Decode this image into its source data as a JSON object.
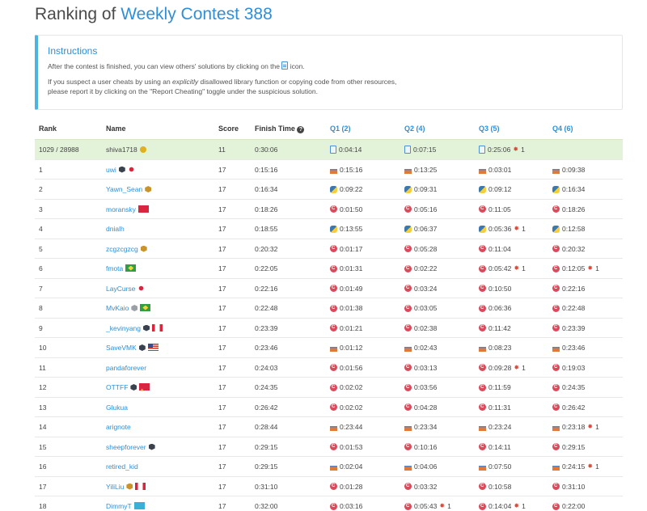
{
  "page": {
    "title_prefix": "Ranking of ",
    "contest_name": "Weekly Contest 388"
  },
  "instructions": {
    "title": "Instructions",
    "line1_before": "After the contest is finished, you can view others' solutions by clicking on the",
    "line1_after": "icon.",
    "line2a_before": "If you suspect a user cheats by using an ",
    "line2a_em": "explicitly",
    "line2a_after": " disallowed library function or copying code from other resources,",
    "line2b": "please report it by clicking on the \"Report Cheating\" toggle under the suspicious solution."
  },
  "table": {
    "headers": {
      "rank": "Rank",
      "name": "Name",
      "score": "Score",
      "finish_time": "Finish Time",
      "q1": "Q1 (2)",
      "q2": "Q2 (4)",
      "q3": "Q3 (5)",
      "q4": "Q4 (6)"
    },
    "rows": [
      {
        "rank": "1029 / 28988",
        "name": "shiva1718",
        "self": true,
        "badge": "knight",
        "flag": "",
        "score": "11",
        "finish": "0:30:06",
        "q": [
          {
            "lang": "file",
            "time": "0:04:14",
            "bugs": ""
          },
          {
            "lang": "file",
            "time": "0:07:15",
            "bugs": ""
          },
          {
            "lang": "file",
            "time": "0:25:06",
            "bugs": "1"
          },
          {
            "lang": "",
            "time": "",
            "bugs": ""
          }
        ]
      },
      {
        "rank": "1",
        "name": "uwi",
        "badge": "hex",
        "flag": "jp",
        "score": "17",
        "finish": "0:15:16",
        "q": [
          {
            "lang": "java",
            "time": "0:15:16",
            "bugs": ""
          },
          {
            "lang": "java",
            "time": "0:13:25",
            "bugs": ""
          },
          {
            "lang": "java",
            "time": "0:03:01",
            "bugs": ""
          },
          {
            "lang": "java",
            "time": "0:09:38",
            "bugs": ""
          }
        ]
      },
      {
        "rank": "2",
        "name": "Yawn_Sean",
        "badge": "hex-gold",
        "flag": "",
        "score": "17",
        "finish": "0:16:34",
        "q": [
          {
            "lang": "python",
            "time": "0:09:22",
            "bugs": ""
          },
          {
            "lang": "python",
            "time": "0:09:31",
            "bugs": ""
          },
          {
            "lang": "python",
            "time": "0:09:12",
            "bugs": ""
          },
          {
            "lang": "python",
            "time": "0:16:34",
            "bugs": ""
          }
        ]
      },
      {
        "rank": "3",
        "name": "moransky",
        "badge": "",
        "flag": "hk",
        "score": "17",
        "finish": "0:18:26",
        "q": [
          {
            "lang": "cpp",
            "time": "0:01:50",
            "bugs": ""
          },
          {
            "lang": "cpp",
            "time": "0:05:16",
            "bugs": ""
          },
          {
            "lang": "cpp",
            "time": "0:11:05",
            "bugs": ""
          },
          {
            "lang": "cpp",
            "time": "0:18:26",
            "bugs": ""
          }
        ]
      },
      {
        "rank": "4",
        "name": "dnialh",
        "badge": "",
        "flag": "",
        "score": "17",
        "finish": "0:18:55",
        "q": [
          {
            "lang": "python",
            "time": "0:13:55",
            "bugs": ""
          },
          {
            "lang": "python",
            "time": "0:06:37",
            "bugs": ""
          },
          {
            "lang": "python",
            "time": "0:05:36",
            "bugs": "1"
          },
          {
            "lang": "python",
            "time": "0:12:58",
            "bugs": ""
          }
        ]
      },
      {
        "rank": "5",
        "name": "zcgzcgzcg",
        "badge": "hex-gold",
        "flag": "",
        "score": "17",
        "finish": "0:20:32",
        "q": [
          {
            "lang": "cpp",
            "time": "0:01:17",
            "bugs": ""
          },
          {
            "lang": "cpp",
            "time": "0:05:28",
            "bugs": ""
          },
          {
            "lang": "cpp",
            "time": "0:11:04",
            "bugs": ""
          },
          {
            "lang": "cpp",
            "time": "0:20:32",
            "bugs": ""
          }
        ]
      },
      {
        "rank": "6",
        "name": "fmota",
        "badge": "",
        "flag": "br",
        "score": "17",
        "finish": "0:22:05",
        "q": [
          {
            "lang": "cpp",
            "time": "0:01:31",
            "bugs": ""
          },
          {
            "lang": "cpp",
            "time": "0:02:22",
            "bugs": ""
          },
          {
            "lang": "cpp",
            "time": "0:05:42",
            "bugs": "1"
          },
          {
            "lang": "cpp",
            "time": "0:12:05",
            "bugs": "1"
          }
        ]
      },
      {
        "rank": "7",
        "name": "LayCurse",
        "badge": "",
        "flag": "jp",
        "score": "17",
        "finish": "0:22:16",
        "q": [
          {
            "lang": "cpp",
            "time": "0:01:49",
            "bugs": ""
          },
          {
            "lang": "cpp",
            "time": "0:03:24",
            "bugs": ""
          },
          {
            "lang": "cpp",
            "time": "0:10:50",
            "bugs": ""
          },
          {
            "lang": "cpp",
            "time": "0:22:16",
            "bugs": ""
          }
        ]
      },
      {
        "rank": "8",
        "name": "MvKaio",
        "badge": "hex-grey",
        "flag": "br",
        "score": "17",
        "finish": "0:22:48",
        "q": [
          {
            "lang": "cpp",
            "time": "0:01:38",
            "bugs": ""
          },
          {
            "lang": "cpp",
            "time": "0:03:05",
            "bugs": ""
          },
          {
            "lang": "cpp",
            "time": "0:06:36",
            "bugs": ""
          },
          {
            "lang": "cpp",
            "time": "0:22:48",
            "bugs": ""
          }
        ]
      },
      {
        "rank": "9",
        "name": "_kevinyang",
        "badge": "hex",
        "flag": "ca",
        "score": "17",
        "finish": "0:23:39",
        "q": [
          {
            "lang": "cpp",
            "time": "0:01:21",
            "bugs": ""
          },
          {
            "lang": "cpp",
            "time": "0:02:38",
            "bugs": ""
          },
          {
            "lang": "cpp",
            "time": "0:11:42",
            "bugs": ""
          },
          {
            "lang": "cpp",
            "time": "0:23:39",
            "bugs": ""
          }
        ]
      },
      {
        "rank": "10",
        "name": "SaveVMK",
        "badge": "hex",
        "flag": "us",
        "score": "17",
        "finish": "0:23:46",
        "q": [
          {
            "lang": "java",
            "time": "0:01:12",
            "bugs": ""
          },
          {
            "lang": "java",
            "time": "0:02:43",
            "bugs": ""
          },
          {
            "lang": "java",
            "time": "0:08:23",
            "bugs": ""
          },
          {
            "lang": "java",
            "time": "0:23:46",
            "bugs": ""
          }
        ]
      },
      {
        "rank": "11",
        "name": "pandaforever",
        "badge": "",
        "flag": "",
        "score": "17",
        "finish": "0:24:03",
        "q": [
          {
            "lang": "cpp",
            "time": "0:01:56",
            "bugs": ""
          },
          {
            "lang": "cpp",
            "time": "0:03:13",
            "bugs": ""
          },
          {
            "lang": "cpp",
            "time": "0:09:28",
            "bugs": "1"
          },
          {
            "lang": "cpp",
            "time": "0:19:03",
            "bugs": ""
          }
        ]
      },
      {
        "rank": "12",
        "name": "OTTFF",
        "badge": "hex",
        "flag": "cn",
        "score": "17",
        "finish": "0:24:35",
        "q": [
          {
            "lang": "cpp",
            "time": "0:02:02",
            "bugs": ""
          },
          {
            "lang": "cpp",
            "time": "0:03:56",
            "bugs": ""
          },
          {
            "lang": "cpp",
            "time": "0:11:59",
            "bugs": ""
          },
          {
            "lang": "cpp",
            "time": "0:24:35",
            "bugs": ""
          }
        ]
      },
      {
        "rank": "13",
        "name": "Glukua",
        "badge": "",
        "flag": "",
        "score": "17",
        "finish": "0:26:42",
        "q": [
          {
            "lang": "cpp",
            "time": "0:02:02",
            "bugs": ""
          },
          {
            "lang": "cpp",
            "time": "0:04:28",
            "bugs": ""
          },
          {
            "lang": "cpp",
            "time": "0:11:31",
            "bugs": ""
          },
          {
            "lang": "cpp",
            "time": "0:26:42",
            "bugs": ""
          }
        ]
      },
      {
        "rank": "14",
        "name": "arignote",
        "badge": "",
        "flag": "",
        "score": "17",
        "finish": "0:28:44",
        "q": [
          {
            "lang": "java",
            "time": "0:23:44",
            "bugs": ""
          },
          {
            "lang": "java",
            "time": "0:23:34",
            "bugs": ""
          },
          {
            "lang": "java",
            "time": "0:23:24",
            "bugs": ""
          },
          {
            "lang": "java",
            "time": "0:23:18",
            "bugs": "1"
          }
        ]
      },
      {
        "rank": "15",
        "name": "sheepforever",
        "badge": "hex",
        "flag": "",
        "score": "17",
        "finish": "0:29:15",
        "q": [
          {
            "lang": "cpp",
            "time": "0:01:53",
            "bugs": ""
          },
          {
            "lang": "cpp",
            "time": "0:10:16",
            "bugs": ""
          },
          {
            "lang": "cpp",
            "time": "0:14:11",
            "bugs": ""
          },
          {
            "lang": "cpp",
            "time": "0:29:15",
            "bugs": ""
          }
        ]
      },
      {
        "rank": "16",
        "name": "retired_kid",
        "badge": "",
        "flag": "",
        "score": "17",
        "finish": "0:29:15",
        "q": [
          {
            "lang": "java",
            "time": "0:02:04",
            "bugs": ""
          },
          {
            "lang": "java",
            "time": "0:04:06",
            "bugs": ""
          },
          {
            "lang": "java",
            "time": "0:07:50",
            "bugs": ""
          },
          {
            "lang": "java",
            "time": "0:24:15",
            "bugs": "1"
          }
        ]
      },
      {
        "rank": "17",
        "name": "YiliLiu",
        "badge": "hex-gold",
        "flag": "ca",
        "score": "17",
        "finish": "0:31:10",
        "q": [
          {
            "lang": "cpp",
            "time": "0:01:28",
            "bugs": ""
          },
          {
            "lang": "cpp",
            "time": "0:03:32",
            "bugs": ""
          },
          {
            "lang": "cpp",
            "time": "0:10:58",
            "bugs": ""
          },
          {
            "lang": "cpp",
            "time": "0:31:10",
            "bugs": ""
          }
        ]
      },
      {
        "rank": "18",
        "name": "DimmyT",
        "badge": "",
        "flag": "kz",
        "score": "17",
        "finish": "0:32:00",
        "q": [
          {
            "lang": "cpp",
            "time": "0:03:16",
            "bugs": ""
          },
          {
            "lang": "cpp",
            "time": "0:05:43",
            "bugs": "1"
          },
          {
            "lang": "cpp",
            "time": "0:14:04",
            "bugs": "1"
          },
          {
            "lang": "cpp",
            "time": "0:22:00",
            "bugs": ""
          }
        ]
      }
    ]
  }
}
